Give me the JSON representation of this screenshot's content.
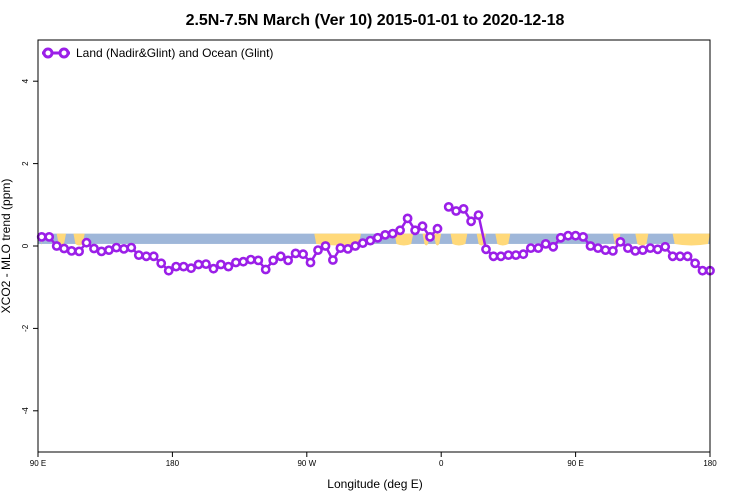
{
  "chart_data": {
    "type": "line",
    "title": "2.5N-7.5N March (Ver 10)   2015-01-01 to 2020-12-18",
    "xlabel": "Longitude (deg E)",
    "ylabel": "XCO2 - MLO trend (ppm)",
    "xlim": [
      90,
      450
    ],
    "ylim": [
      -5,
      5
    ],
    "x_ticks": [
      {
        "value": 90,
        "label": "90 E"
      },
      {
        "value": 162,
        "label": "180"
      },
      {
        "value": 234,
        "label": "90 W"
      },
      {
        "value": 306,
        "label": "0"
      },
      {
        "value": 378,
        "label": "90 E"
      },
      {
        "value": 450,
        "label": "180"
      }
    ],
    "y_ticks": [
      {
        "value": -4,
        "label": "-4"
      },
      {
        "value": -2,
        "label": "-2"
      },
      {
        "value": 0,
        "label": "0"
      },
      {
        "value": 2,
        "label": "2"
      },
      {
        "value": 4,
        "label": "4"
      }
    ],
    "legend": {
      "position": "top-left",
      "entries": [
        "Land (Nadir&Glint) and Ocean (Glint)"
      ]
    },
    "series": [
      {
        "name": "Land (Nadir&Glint) and Ocean (Glint)",
        "color": "#9b1fe8",
        "segments": [
          {
            "x": [
              92,
              96,
              100,
              104,
              108,
              112,
              116,
              120,
              124,
              128,
              132,
              136,
              140,
              144,
              148,
              152,
              156,
              160,
              164,
              168,
              172,
              176,
              180,
              184,
              188,
              192,
              196,
              200,
              204,
              208,
              212,
              216,
              220,
              224,
              228,
              232,
              236,
              240,
              244,
              248,
              252,
              256,
              260,
              264,
              268,
              272,
              276,
              280,
              284,
              288,
              292,
              296,
              300,
              304
            ],
            "y": [
              0.22,
              0.22,
              0.0,
              -0.06,
              -0.12,
              -0.13,
              0.08,
              -0.06,
              -0.13,
              -0.1,
              -0.04,
              -0.07,
              -0.04,
              -0.22,
              -0.25,
              -0.25,
              -0.42,
              -0.6,
              -0.5,
              -0.5,
              -0.54,
              -0.45,
              -0.44,
              -0.55,
              -0.45,
              -0.5,
              -0.4,
              -0.38,
              -0.33,
              -0.35,
              -0.57,
              -0.35,
              -0.25,
              -0.35,
              -0.18,
              -0.2,
              -0.4,
              -0.1,
              0.0,
              -0.34,
              -0.05,
              -0.07,
              0.0,
              0.07,
              0.13,
              0.2,
              0.27,
              0.3,
              0.38,
              0.67,
              0.38,
              0.48,
              0.22,
              0.42
            ]
          },
          {
            "x": [
              310,
              314,
              318,
              322,
              326,
              330,
              334,
              338,
              342,
              346,
              350,
              354,
              358,
              362,
              366,
              370,
              374,
              378,
              382,
              386,
              390,
              394,
              398,
              402,
              406,
              410,
              414,
              418,
              422,
              426,
              430,
              434,
              438,
              442,
              446,
              450
            ],
            "y": [
              0.95,
              0.85,
              0.9,
              0.6,
              0.75,
              -0.08,
              -0.25,
              -0.25,
              -0.22,
              -0.22,
              -0.2,
              -0.05,
              -0.05,
              0.05,
              -0.02,
              0.2,
              0.25,
              0.25,
              0.22,
              0.0,
              -0.05,
              -0.1,
              -0.12,
              0.1,
              -0.05,
              -0.12,
              -0.1,
              -0.05,
              -0.08,
              -0.02,
              -0.25,
              -0.25,
              -0.25,
              -0.42,
              -0.6,
              -0.6
            ]
          }
        ]
      }
    ],
    "surface_strip": {
      "colors": {
        "ocean": "#9fb7d9",
        "land": "#ffd97a"
      },
      "y_top": 0.3,
      "y_bottom": 0.05,
      "land_ranges": [
        [
          91,
          93
        ],
        [
          100,
          105
        ],
        [
          109,
          115
        ],
        [
          238,
          263
        ],
        [
          281,
          291
        ],
        [
          296,
          300
        ],
        [
          302,
          306
        ],
        [
          311,
          320
        ],
        [
          325,
          330
        ],
        [
          335,
          343
        ],
        [
          398,
          402
        ],
        [
          410,
          417
        ],
        [
          430,
          450
        ]
      ]
    }
  }
}
